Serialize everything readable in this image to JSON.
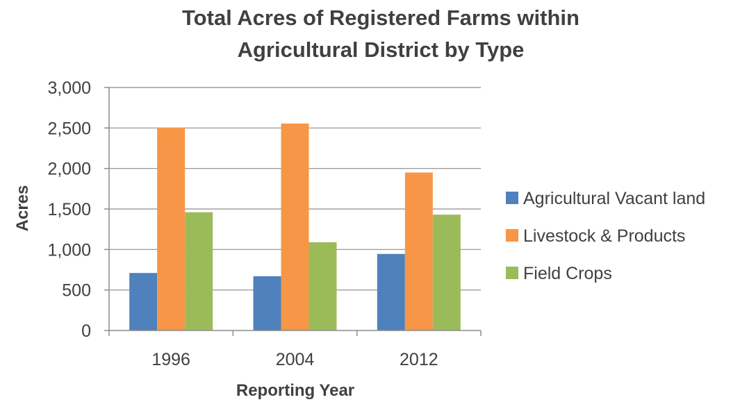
{
  "chart_data": {
    "type": "bar",
    "title_lines": [
      "Total Acres of Registered Farms within",
      "Agricultural District by Type"
    ],
    "xlabel": "Reporting Year",
    "ylabel": "Acres",
    "categories": [
      "1996",
      "2004",
      "2012"
    ],
    "ylim": [
      0,
      3000
    ],
    "yticks": [
      0,
      500,
      1000,
      1500,
      2000,
      2500,
      3000
    ],
    "ytick_labels": [
      "0",
      "500",
      "1,000",
      "1,500",
      "2,000",
      "2,500",
      "3,000"
    ],
    "grid": true,
    "legend_position": "right",
    "series": [
      {
        "name": "Agricultural Vacant land",
        "color": "#4F81BD",
        "values": [
          710,
          670,
          945
        ]
      },
      {
        "name": "Livestock & Products",
        "color": "#F79646",
        "values": [
          2505,
          2555,
          1950
        ]
      },
      {
        "name": "Field Crops",
        "color": "#9BBB59",
        "values": [
          1460,
          1090,
          1430
        ]
      }
    ]
  }
}
